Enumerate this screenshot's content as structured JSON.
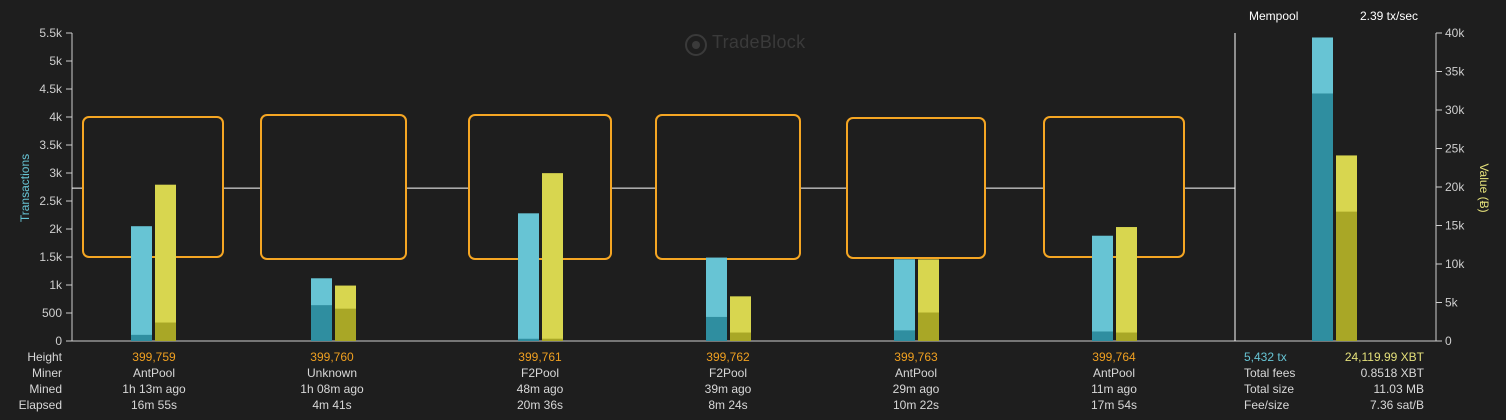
{
  "logo": {
    "text": "TradeBlock"
  },
  "mempool": {
    "title": "Mempool",
    "rate": "2.39 tx/sec",
    "tx": "5,432 tx",
    "value": "24,119.99 XBT",
    "fees_label": "Total fees",
    "fees": "0.8518 XBT",
    "size_label": "Total size",
    "size": "11.03 MB",
    "fee_label": "Fee/size",
    "fee": "7.36 sat/B"
  },
  "row_labels": {
    "height": "Height",
    "miner": "Miner",
    "mined": "Mined",
    "elapsed": "Elapsed"
  },
  "blocks": [
    {
      "height": "399,759",
      "miner": "AntPool",
      "mined": "1h 13m ago",
      "elapsed": "16m 55s"
    },
    {
      "height": "399,760",
      "miner": "Unknown",
      "mined": "1h 08m ago",
      "elapsed": "4m 41s"
    },
    {
      "height": "399,761",
      "miner": "F2Pool",
      "mined": "48m ago",
      "elapsed": "20m 36s"
    },
    {
      "height": "399,762",
      "miner": "F2Pool",
      "mined": "39m ago",
      "elapsed": "8m 24s"
    },
    {
      "height": "399,763",
      "miner": "AntPool",
      "mined": "29m ago",
      "elapsed": "10m 22s"
    },
    {
      "height": "399,764",
      "miner": "AntPool",
      "mined": "11m ago",
      "elapsed": "17m 54s"
    }
  ],
  "chart_data": {
    "type": "bar",
    "ylabel": "Transactions",
    "y2label": "Value (Ƀ)",
    "ylim": [
      0,
      5500
    ],
    "y2lim": [
      0,
      40000
    ],
    "yticks": [
      "0",
      "500",
      "1k",
      "1.5k",
      "2k",
      "2.5k",
      "3k",
      "3.5k",
      "4k",
      "4.5k",
      "5k",
      "5.5k"
    ],
    "y2ticks": [
      "0",
      "5k",
      "10k",
      "15k",
      "20k",
      "25k",
      "30k",
      "35k",
      "40k"
    ],
    "categories": [
      "399,759",
      "399,760",
      "399,761",
      "399,762",
      "399,763",
      "399,764",
      "Mempool"
    ],
    "series": [
      {
        "name": "Transactions",
        "axis": "left",
        "values": [
          2050,
          1120,
          2280,
          1490,
          1460,
          1880,
          5420
        ],
        "dark_values": [
          110,
          640,
          40,
          430,
          190,
          170,
          4420
        ]
      },
      {
        "name": "Value",
        "axis": "right",
        "values": [
          20300,
          7200,
          21800,
          5800,
          10600,
          14800,
          24100
        ],
        "dark_values": [
          2400,
          4200,
          300,
          1100,
          3700,
          1100,
          16800
        ]
      }
    ],
    "block_size_boxes": [
      true,
      true,
      true,
      true,
      true,
      true,
      false
    ],
    "reference_line": 2730,
    "colors": {
      "tx": "#67c4d4",
      "tx_dark": "#2f8ea0",
      "value": "#d8d64f",
      "value_dark": "#a9a726",
      "box": "#f5a623",
      "grid": "#cfcfcf",
      "line": "#ffffff"
    }
  }
}
